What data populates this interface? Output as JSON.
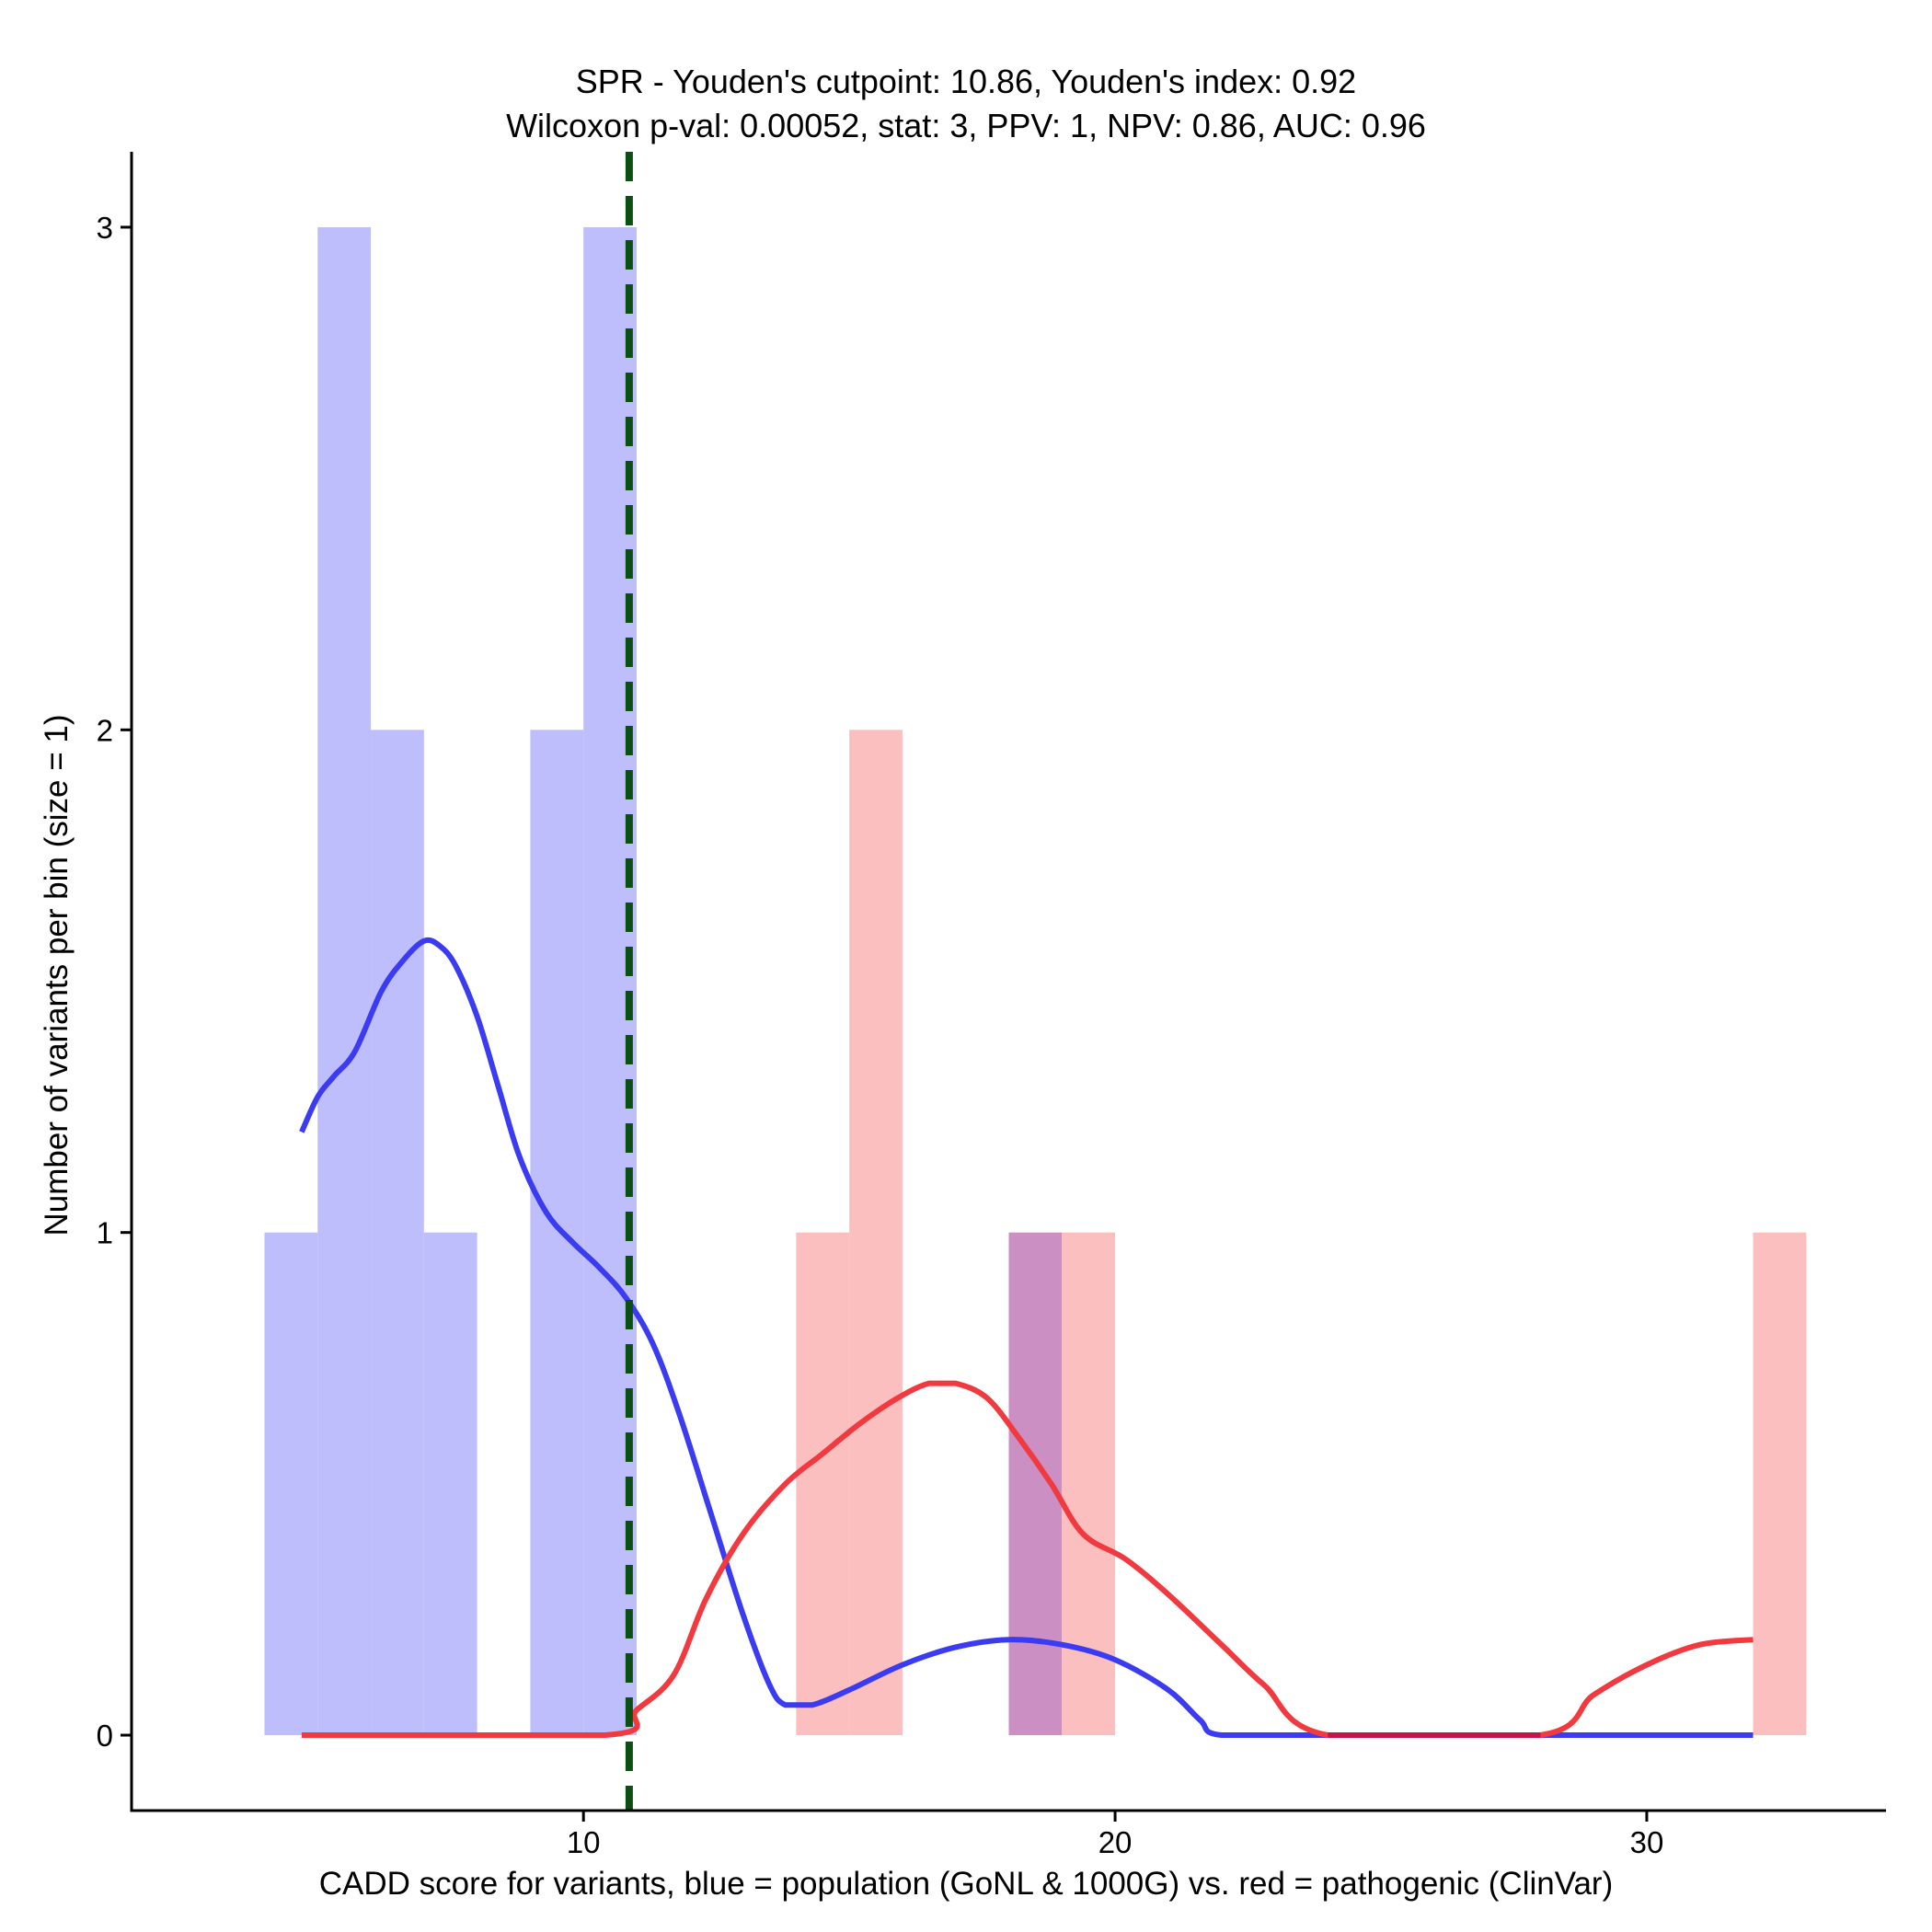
{
  "chart_data": {
    "type": "histogram",
    "title": "SPR - Youden's cutpoint: 10.86, Youden's index: 0.92",
    "subtitle": "Wilcoxon p-val: 0.00052, stat: 3, PPV: 1, NPV: 0.86, AUC: 0.96",
    "xlabel": "CADD score for variants, blue = population (GoNL & 1000G) vs. red = pathogenic (ClinVar)",
    "ylabel": "Number of variants per bin (size = 1)",
    "xlim": [
      1.5,
      34.5
    ],
    "ylim": [
      -0.15,
      3.15
    ],
    "x_ticks": [
      10,
      20,
      30
    ],
    "y_ticks": [
      0,
      1,
      2,
      3
    ],
    "bin_width": 1,
    "cutpoint": 10.86,
    "series": [
      {
        "name": "population (GoNL & 1000G)",
        "color": "#0000ff",
        "bins": [
          {
            "x0": 4,
            "x1": 5,
            "count": 1
          },
          {
            "x0": 5,
            "x1": 6,
            "count": 3
          },
          {
            "x0": 6,
            "x1": 7,
            "count": 2
          },
          {
            "x0": 7,
            "x1": 8,
            "count": 1
          },
          {
            "x0": 9,
            "x1": 10,
            "count": 2
          },
          {
            "x0": 10,
            "x1": 11,
            "count": 3
          },
          {
            "x0": 18,
            "x1": 19,
            "count": 1
          }
        ],
        "density": [
          [
            4.7,
            1.2
          ],
          [
            5,
            1.27
          ],
          [
            5.3,
            1.31
          ],
          [
            5.7,
            1.36
          ],
          [
            6.2,
            1.48
          ],
          [
            6.6,
            1.54
          ],
          [
            7,
            1.58
          ],
          [
            7.3,
            1.57
          ],
          [
            7.6,
            1.53
          ],
          [
            8,
            1.43
          ],
          [
            8.4,
            1.29
          ],
          [
            8.8,
            1.15
          ],
          [
            9.3,
            1.04
          ],
          [
            9.8,
            0.98
          ],
          [
            10.3,
            0.93
          ],
          [
            10.8,
            0.87
          ],
          [
            11.3,
            0.78
          ],
          [
            11.8,
            0.64
          ],
          [
            12.4,
            0.44
          ],
          [
            13,
            0.24
          ],
          [
            13.5,
            0.1
          ],
          [
            13.8,
            0.06
          ],
          [
            14.3,
            0.06
          ],
          [
            15,
            0.09
          ],
          [
            16,
            0.14
          ],
          [
            17,
            0.175
          ],
          [
            18,
            0.19
          ],
          [
            19,
            0.18
          ],
          [
            20,
            0.15
          ],
          [
            21,
            0.09
          ],
          [
            21.6,
            0.03
          ],
          [
            22,
            0
          ],
          [
            24,
            0
          ],
          [
            28,
            0
          ],
          [
            32,
            0
          ]
        ]
      },
      {
        "name": "pathogenic (ClinVar)",
        "color": "#ff0000",
        "bins": [
          {
            "x0": 14,
            "x1": 15,
            "count": 1
          },
          {
            "x0": 15,
            "x1": 16,
            "count": 2
          },
          {
            "x0": 18,
            "x1": 19,
            "count": 1
          },
          {
            "x0": 19,
            "x1": 20,
            "count": 1
          },
          {
            "x0": 32,
            "x1": 33,
            "count": 1
          }
        ],
        "density": [
          [
            4.7,
            0
          ],
          [
            10.4,
            0
          ],
          [
            11,
            0.05
          ],
          [
            11.7,
            0.12
          ],
          [
            12.3,
            0.27
          ],
          [
            13,
            0.4
          ],
          [
            13.8,
            0.5
          ],
          [
            14.5,
            0.56
          ],
          [
            15.2,
            0.62
          ],
          [
            15.9,
            0.67
          ],
          [
            16.5,
            0.7
          ],
          [
            17,
            0.7
          ],
          [
            17.6,
            0.67
          ],
          [
            18.2,
            0.59
          ],
          [
            18.8,
            0.5
          ],
          [
            19.4,
            0.4
          ],
          [
            20.2,
            0.35
          ],
          [
            21,
            0.28
          ],
          [
            22,
            0.18
          ],
          [
            22.8,
            0.1
          ],
          [
            24,
            0
          ],
          [
            28,
            0
          ],
          [
            29,
            0.08
          ],
          [
            30,
            0.14
          ],
          [
            31,
            0.18
          ],
          [
            32,
            0.19
          ]
        ]
      }
    ],
    "colors": {
      "population_bar": "#bebefc",
      "pathogenic_bar": "#fcbfbf",
      "overlap_bar": "#cc8fc3",
      "population_line": "#3b3bf2",
      "pathogenic_line": "#f03a3f",
      "overlap_line": "#c4154b",
      "cutpoint_line": "#0b4f12"
    }
  }
}
